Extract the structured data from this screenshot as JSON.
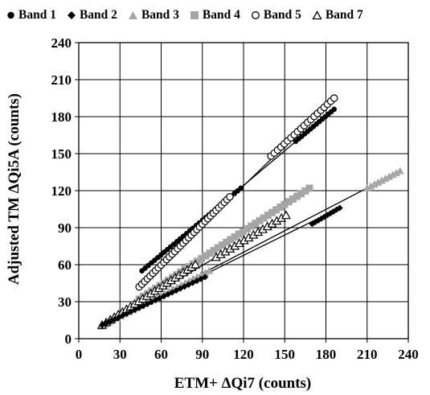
{
  "chart_data": {
    "type": "scatter",
    "xlabel": "ETM+ ΔQi7 (counts)",
    "ylabel": "Adjusted TM ΔQi5A (counts)",
    "xlim": [
      0,
      240
    ],
    "ylim": [
      0,
      240
    ],
    "xticks": [
      "0",
      "30",
      "60",
      "90",
      "120",
      "150",
      "180",
      "210",
      "240"
    ],
    "yticks": [
      "0",
      "30",
      "60",
      "90",
      "120",
      "150",
      "180",
      "210",
      "240"
    ],
    "grid": true,
    "legend_position": "top",
    "series": [
      {
        "name": "Band 1",
        "marker": "filled-circle",
        "color": "#000000",
        "fit": [
          [
            46,
            55
          ],
          [
            186,
            186
          ]
        ],
        "segments": [
          [
            46,
            55,
            118,
            122,
            32
          ],
          [
            158,
            160,
            186,
            186,
            14
          ]
        ]
      },
      {
        "name": "Band 2",
        "marker": "filled-diamond",
        "color": "#000000",
        "fit": [
          [
            17,
            11
          ],
          [
            190,
            106
          ]
        ],
        "segments": [
          [
            17,
            11,
            92,
            50,
            26
          ],
          [
            170,
            93,
            190,
            106,
            10
          ]
        ]
      },
      {
        "name": "Band 3",
        "marker": "filled-triangle",
        "color": "#a6a6a6",
        "fit": [
          [
            16,
            10
          ],
          [
            234,
            136
          ]
        ],
        "segments": [
          [
            16,
            10,
            95,
            55,
            28
          ],
          [
            210,
            122,
            234,
            136,
            10
          ]
        ]
      },
      {
        "name": "Band 4",
        "marker": "filled-square",
        "color": "#a6a6a6",
        "fit": [
          [
            44,
            32
          ],
          [
            168,
            122
          ]
        ],
        "segments": [
          [
            44,
            32,
            168,
            122,
            42
          ]
        ]
      },
      {
        "name": "Band 5",
        "marker": "open-circle",
        "color": "#000000",
        "fit": [
          [
            44,
            42
          ],
          [
            186,
            195
          ]
        ],
        "segments": [
          [
            44,
            42,
            110,
            115,
            34
          ],
          [
            140,
            148,
            186,
            195,
            20
          ]
        ]
      },
      {
        "name": "Band 7",
        "marker": "open-triangle",
        "color": "#000000",
        "fit": [
          [
            17,
            11
          ],
          [
            151,
            100
          ]
        ],
        "segments": [
          [
            17,
            11,
            85,
            60,
            24
          ],
          [
            100,
            66,
            151,
            100,
            16
          ]
        ]
      }
    ]
  }
}
